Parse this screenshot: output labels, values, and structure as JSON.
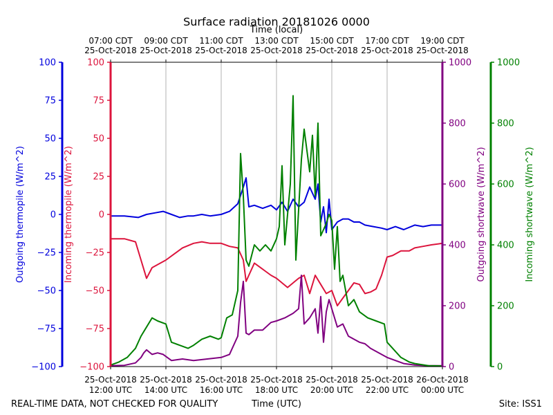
{
  "chart_data": {
    "type": "line",
    "title": "Surface radiation 20181026 0000",
    "top_axis_label": "Time (local)",
    "xlabel": "Time (UTC)",
    "footer_left": "REAL-TIME DATA, NOT CHECKED FOR QUALITY",
    "footer_right": "Site: ISS1",
    "x_range_hours": [
      12,
      24
    ],
    "bottom_ticks": [
      {
        "hour": 12,
        "line1": "25-Oct-2018",
        "line2": "12:00 UTC"
      },
      {
        "hour": 14,
        "line1": "25-Oct-2018",
        "line2": "14:00 UTC"
      },
      {
        "hour": 16,
        "line1": "25-Oct-2018",
        "line2": "16:00 UTC"
      },
      {
        "hour": 18,
        "line1": "25-Oct-2018",
        "line2": "18:00 UTC"
      },
      {
        "hour": 20,
        "line1": "25-Oct-2018",
        "line2": "20:00 UTC"
      },
      {
        "hour": 22,
        "line1": "25-Oct-2018",
        "line2": "22:00 UTC"
      },
      {
        "hour": 24,
        "line1": "26-Oct-2018",
        "line2": "00:00 UTC"
      }
    ],
    "top_ticks": [
      {
        "hour": 12,
        "line1": "07:00 CDT",
        "line2": "25-Oct-2018"
      },
      {
        "hour": 14,
        "line1": "09:00 CDT",
        "line2": "25-Oct-2018"
      },
      {
        "hour": 16,
        "line1": "11:00 CDT",
        "line2": "25-Oct-2018"
      },
      {
        "hour": 18,
        "line1": "13:00 CDT",
        "line2": "25-Oct-2018"
      },
      {
        "hour": 20,
        "line1": "15:00 CDT",
        "line2": "25-Oct-2018"
      },
      {
        "hour": 22,
        "line1": "17:00 CDT",
        "line2": "25-Oct-2018"
      },
      {
        "hour": 24,
        "line1": "19:00 CDT",
        "line2": "25-Oct-2018"
      }
    ],
    "axes": {
      "outgoing_thermopile": {
        "label": "Outgoing thermopile (W/m^2)",
        "color": "#0000dd",
        "ylim": [
          -100,
          100
        ],
        "ticks": [
          {
            "v": 100,
            "t": "100"
          },
          {
            "v": 75,
            "t": "75"
          },
          {
            "v": 50,
            "t": "50"
          },
          {
            "v": 25,
            "t": "25"
          },
          {
            "v": 0,
            "t": "0"
          },
          {
            "v": -25,
            "t": "−25"
          },
          {
            "v": -50,
            "t": "−50"
          },
          {
            "v": -75,
            "t": "−75"
          },
          {
            "v": -100,
            "t": "−100"
          }
        ]
      },
      "incoming_thermopile": {
        "label": "Incoming thermopile (W/m^2)",
        "color": "#dc143c",
        "ylim": [
          -100,
          100
        ],
        "ticks": [
          {
            "v": 100,
            "t": "100"
          },
          {
            "v": 75,
            "t": "75"
          },
          {
            "v": 50,
            "t": "50"
          },
          {
            "v": 25,
            "t": "25"
          },
          {
            "v": 0,
            "t": "0"
          },
          {
            "v": -25,
            "t": "−25"
          },
          {
            "v": -50,
            "t": "−50"
          },
          {
            "v": -75,
            "t": "−75"
          },
          {
            "v": -100,
            "t": "−100"
          }
        ]
      },
      "outgoing_shortwave": {
        "label": "Outgoing shortwave (W/m^2)",
        "color": "#800080",
        "ylim": [
          0,
          1000
        ],
        "ticks": [
          {
            "v": 1000,
            "t": "1000"
          },
          {
            "v": 800,
            "t": "800"
          },
          {
            "v": 600,
            "t": "600"
          },
          {
            "v": 400,
            "t": "400"
          },
          {
            "v": 200,
            "t": "200"
          },
          {
            "v": 0,
            "t": "0"
          }
        ]
      },
      "incoming_shortwave": {
        "label": "Incoming shortwave (W/m^2)",
        "color": "#008000",
        "ylim": [
          0,
          1000
        ],
        "ticks": [
          {
            "v": 1000,
            "t": "1000"
          },
          {
            "v": 800,
            "t": "800"
          },
          {
            "v": 600,
            "t": "600"
          },
          {
            "v": 400,
            "t": "400"
          },
          {
            "v": 200,
            "t": "200"
          },
          {
            "v": 0,
            "t": "0"
          }
        ]
      }
    },
    "series": [
      {
        "name": "Outgoing thermopile",
        "axis": "outgoing_thermopile",
        "color": "#0000dd",
        "x": [
          12.0,
          12.5,
          13.0,
          13.3,
          13.6,
          13.9,
          14.2,
          14.5,
          14.8,
          15.0,
          15.3,
          15.6,
          16.0,
          16.3,
          16.6,
          16.8,
          16.9,
          17.0,
          17.2,
          17.5,
          17.8,
          18.0,
          18.2,
          18.4,
          18.6,
          18.8,
          19.0,
          19.2,
          19.4,
          19.5,
          19.6,
          19.7,
          19.8,
          19.9,
          20.0,
          20.2,
          20.4,
          20.6,
          20.8,
          21.0,
          21.2,
          21.5,
          21.8,
          22.0,
          22.3,
          22.6,
          23.0,
          23.3,
          23.6,
          24.0
        ],
        "values": [
          -1,
          -1,
          -2,
          0,
          1,
          2,
          0,
          -2,
          -1,
          -1,
          0,
          -1,
          0,
          2,
          7,
          18,
          24,
          5,
          6,
          4,
          6,
          3,
          8,
          2,
          10,
          5,
          8,
          18,
          10,
          20,
          -5,
          5,
          -12,
          10,
          -10,
          -5,
          -3,
          -3,
          -5,
          -5,
          -7,
          -8,
          -9,
          -10,
          -8,
          -10,
          -7,
          -8,
          -7,
          -7
        ]
      },
      {
        "name": "Incoming thermopile",
        "axis": "incoming_thermopile",
        "color": "#dc143c",
        "x": [
          12.0,
          12.5,
          12.9,
          13.1,
          13.3,
          13.5,
          13.8,
          14.0,
          14.3,
          14.6,
          15.0,
          15.3,
          15.6,
          16.0,
          16.3,
          16.6,
          16.8,
          16.9,
          17.0,
          17.2,
          17.5,
          17.8,
          18.0,
          18.2,
          18.4,
          18.6,
          18.8,
          19.0,
          19.2,
          19.4,
          19.6,
          19.8,
          20.0,
          20.2,
          20.4,
          20.6,
          20.8,
          21.0,
          21.2,
          21.4,
          21.6,
          21.8,
          22.0,
          22.2,
          22.5,
          22.8,
          23.0,
          23.3,
          23.6,
          24.0
        ],
        "values": [
          -16,
          -16,
          -18,
          -30,
          -42,
          -35,
          -32,
          -30,
          -26,
          -22,
          -19,
          -18,
          -19,
          -19,
          -21,
          -22,
          -30,
          -44,
          -40,
          -32,
          -36,
          -40,
          -42,
          -45,
          -48,
          -45,
          -42,
          -40,
          -52,
          -40,
          -46,
          -52,
          -50,
          -60,
          -55,
          -50,
          -45,
          -46,
          -52,
          -51,
          -49,
          -40,
          -28,
          -27,
          -24,
          -24,
          -22,
          -21,
          -20,
          -19
        ]
      },
      {
        "name": "Outgoing shortwave",
        "axis": "outgoing_shortwave",
        "color": "#800080",
        "x": [
          12.0,
          12.5,
          12.9,
          13.1,
          13.2,
          13.3,
          13.5,
          13.7,
          13.9,
          14.2,
          14.6,
          15.0,
          15.5,
          16.0,
          16.3,
          16.6,
          16.7,
          16.8,
          16.9,
          17.0,
          17.2,
          17.5,
          17.8,
          18.0,
          18.3,
          18.6,
          18.8,
          18.9,
          19.0,
          19.2,
          19.4,
          19.5,
          19.6,
          19.7,
          19.8,
          19.9,
          20.0,
          20.2,
          20.4,
          20.6,
          20.8,
          21.0,
          21.2,
          21.4,
          21.8,
          22.0,
          22.3,
          22.6,
          23.0,
          23.5,
          24.0
        ],
        "values": [
          3,
          4,
          12,
          30,
          45,
          55,
          40,
          45,
          40,
          20,
          25,
          20,
          25,
          30,
          40,
          100,
          210,
          280,
          110,
          105,
          120,
          120,
          145,
          150,
          160,
          175,
          190,
          300,
          140,
          160,
          190,
          110,
          230,
          80,
          180,
          220,
          190,
          130,
          140,
          100,
          90,
          80,
          75,
          60,
          40,
          30,
          20,
          10,
          5,
          3,
          3
        ]
      },
      {
        "name": "Incoming shortwave",
        "axis": "incoming_shortwave",
        "color": "#008000",
        "x": [
          12.0,
          12.3,
          12.6,
          12.9,
          13.1,
          13.3,
          13.5,
          13.7,
          14.0,
          14.2,
          14.5,
          14.8,
          15.0,
          15.3,
          15.6,
          15.9,
          16.0,
          16.2,
          16.4,
          16.6,
          16.7,
          16.8,
          16.9,
          17.0,
          17.2,
          17.4,
          17.6,
          17.8,
          18.0,
          18.1,
          18.2,
          18.3,
          18.5,
          18.6,
          18.7,
          18.9,
          19.0,
          19.2,
          19.3,
          19.4,
          19.5,
          19.6,
          19.7,
          19.8,
          19.9,
          20.0,
          20.1,
          20.2,
          20.3,
          20.4,
          20.6,
          20.8,
          21.0,
          21.3,
          21.6,
          21.9,
          22.0,
          22.2,
          22.5,
          22.8,
          23.0,
          23.5,
          24.0
        ],
        "values": [
          5,
          15,
          30,
          60,
          100,
          130,
          160,
          150,
          140,
          80,
          70,
          60,
          70,
          90,
          100,
          90,
          95,
          160,
          170,
          250,
          700,
          560,
          350,
          330,
          400,
          380,
          400,
          380,
          420,
          460,
          660,
          400,
          600,
          890,
          350,
          680,
          780,
          640,
          760,
          560,
          800,
          430,
          450,
          470,
          500,
          480,
          320,
          460,
          280,
          300,
          200,
          220,
          180,
          160,
          150,
          140,
          80,
          60,
          30,
          15,
          10,
          3,
          2
        ]
      }
    ]
  }
}
